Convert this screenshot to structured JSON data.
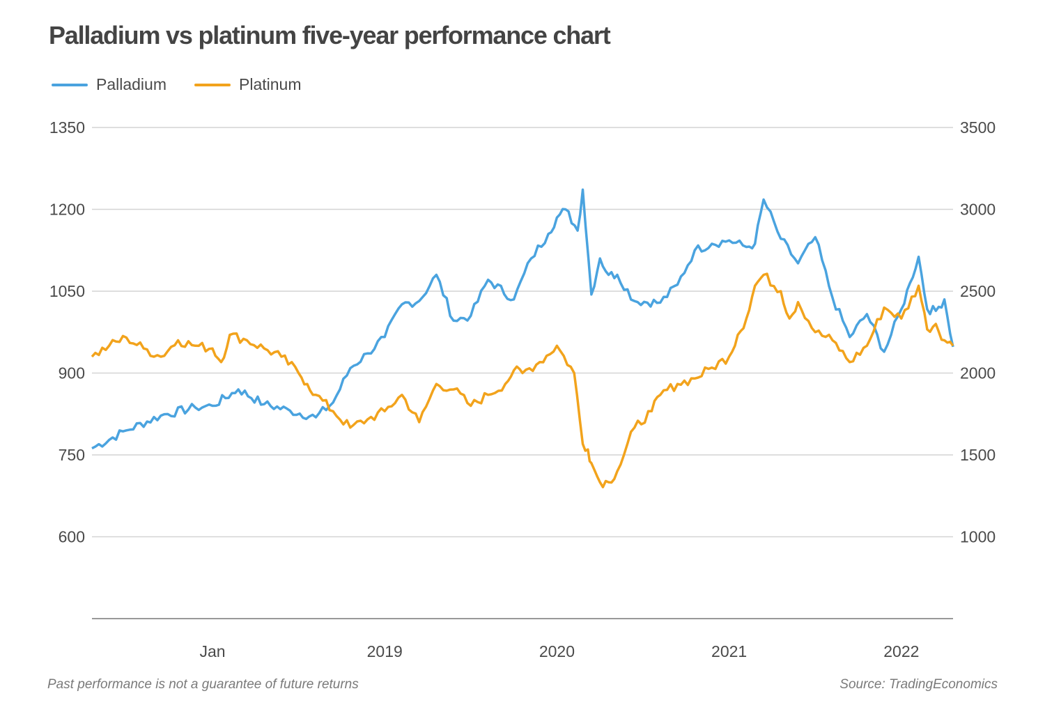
{
  "chart_data": {
    "type": "line",
    "title": "Palladium vs platinum five-year performance chart",
    "legend_position": "top-left",
    "grid": true,
    "x_labels": [
      "Jan",
      "2019",
      "2020",
      "2021",
      "2022"
    ],
    "x_domain": [
      2017.3,
      2022.3
    ],
    "x_label_positions": [
      2018.0,
      2019.0,
      2020.0,
      2021.0,
      2022.0
    ],
    "y_left": {
      "range": [
        450,
        1350
      ],
      "ticks": [
        600,
        750,
        900,
        1050,
        1200,
        1350
      ],
      "series": "Platinum"
    },
    "y_right": {
      "range": [
        500,
        3500
      ],
      "ticks": [
        1000,
        1500,
        2000,
        2500,
        3000,
        3500
      ],
      "series": "Palladium"
    },
    "series": [
      {
        "name": "Palladium",
        "color": "#4aa3df",
        "axis": "right",
        "x": [
          2017.3,
          2017.5,
          2017.7,
          2017.9,
          2018.0,
          2018.15,
          2018.3,
          2018.45,
          2018.6,
          2018.7,
          2018.8,
          2018.9,
          2019.0,
          2019.1,
          2019.2,
          2019.3,
          2019.4,
          2019.5,
          2019.6,
          2019.75,
          2019.85,
          2019.95,
          2020.0,
          2020.05,
          2020.12,
          2020.15,
          2020.2,
          2020.25,
          2020.3,
          2020.35,
          2020.45,
          2020.6,
          2020.7,
          2020.8,
          2020.9,
          2021.0,
          2021.1,
          2021.15,
          2021.2,
          2021.3,
          2021.4,
          2021.5,
          2021.6,
          2021.7,
          2021.8,
          2021.9,
          2022.0,
          2022.05,
          2022.1,
          2022.15,
          2022.2,
          2022.25,
          2022.3
        ],
        "y": [
          1540,
          1650,
          1740,
          1790,
          1800,
          1900,
          1810,
          1770,
          1730,
          1820,
          2030,
          2120,
          2220,
          2420,
          2440,
          2600,
          2320,
          2350,
          2570,
          2450,
          2700,
          2850,
          2950,
          3000,
          2870,
          3120,
          2480,
          2700,
          2600,
          2600,
          2440,
          2430,
          2540,
          2750,
          2790,
          2810,
          2770,
          2790,
          3060,
          2820,
          2670,
          2830,
          2460,
          2220,
          2360,
          2130,
          2390,
          2550,
          2710,
          2390,
          2380,
          2450,
          2160
        ]
      },
      {
        "name": "Platinum",
        "color": "#f2a31c",
        "axis": "left",
        "x": [
          2017.3,
          2017.4,
          2017.5,
          2017.6,
          2017.7,
          2017.8,
          2017.9,
          2018.0,
          2018.05,
          2018.1,
          2018.2,
          2018.3,
          2018.4,
          2018.5,
          2018.55,
          2018.6,
          2018.7,
          2018.8,
          2018.9,
          2019.0,
          2019.1,
          2019.2,
          2019.3,
          2019.4,
          2019.5,
          2019.6,
          2019.7,
          2019.75,
          2019.8,
          2019.9,
          2020.0,
          2020.1,
          2020.15,
          2020.18,
          2020.2,
          2020.25,
          2020.3,
          2020.35,
          2020.45,
          2020.55,
          2020.6,
          2020.7,
          2020.8,
          2020.9,
          2021.0,
          2021.05,
          2021.1,
          2021.15,
          2021.2,
          2021.3,
          2021.35,
          2021.4,
          2021.5,
          2021.6,
          2021.7,
          2021.8,
          2021.9,
          2022.0,
          2022.1,
          2022.15,
          2022.2,
          2022.25,
          2022.3
        ],
        "y": [
          930,
          950,
          965,
          945,
          930,
          960,
          950,
          945,
          920,
          970,
          960,
          945,
          930,
          900,
          880,
          860,
          830,
          800,
          815,
          830,
          860,
          810,
          880,
          870,
          840,
          860,
          880,
          905,
          900,
          920,
          950,
          900,
          770,
          760,
          735,
          700,
          700,
          720,
          800,
          830,
          860,
          880,
          890,
          910,
          930,
          970,
          1000,
          1060,
          1080,
          1050,
          1000,
          1030,
          975,
          960,
          920,
          950,
          1020,
          1000,
          1060,
          980,
          990,
          960,
          950
        ]
      }
    ]
  },
  "footer": {
    "disclaimer": "Past performance is not a guarantee of future returns",
    "source": "Source: TradingEconomics"
  }
}
